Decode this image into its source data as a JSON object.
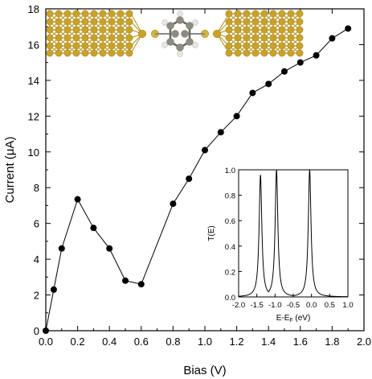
{
  "chart_data": [
    {
      "type": "line",
      "role": "main",
      "xlabel": "Bias (V)",
      "ylabel": "Current (μA)",
      "xlim": [
        0.0,
        2.0
      ],
      "ylim": [
        0,
        18
      ],
      "xticks": [
        0.0,
        0.2,
        0.4,
        0.6,
        0.8,
        1.0,
        1.2,
        1.4,
        1.6,
        1.8,
        2.0
      ],
      "xtick_labels": [
        "0.0",
        "0.2",
        "0.4",
        "0.6",
        "0.8",
        "1.0",
        "1.2",
        "1.4",
        "1.6",
        "1.8",
        "2.0"
      ],
      "yticks": [
        0,
        2,
        4,
        6,
        8,
        10,
        12,
        14,
        16,
        18
      ],
      "ytick_labels": [
        "0",
        "2",
        "4",
        "6",
        "8",
        "10",
        "12",
        "14",
        "16",
        "18"
      ],
      "grid": false,
      "marker": "filled-circle",
      "color": "#000000",
      "series": [
        {
          "x": [
            0.0,
            0.05,
            0.1,
            0.2,
            0.3,
            0.4,
            0.5,
            0.6,
            0.8,
            0.9,
            1.0,
            1.1,
            1.2,
            1.3,
            1.4,
            1.5,
            1.6,
            1.7,
            1.8,
            1.9
          ],
          "y": [
            0.0,
            2.3,
            4.6,
            7.35,
            5.75,
            4.6,
            2.8,
            2.6,
            7.1,
            8.5,
            10.1,
            11.1,
            12.0,
            13.3,
            13.8,
            14.5,
            15.0,
            15.4,
            16.35,
            16.9
          ]
        }
      ]
    },
    {
      "type": "line",
      "role": "inset",
      "xlabel": "E-E_F (eV)",
      "xlabel_main": "E-E",
      "xlabel_sub": "F",
      "xlabel_tail": " (eV)",
      "ylabel": "T(E)",
      "xlim": [
        -2.0,
        1.0
      ],
      "ylim": [
        0.0,
        1.0
      ],
      "xticks": [
        -2.0,
        -1.5,
        -1.0,
        -0.5,
        0.0,
        0.5,
        1.0
      ],
      "xtick_labels": [
        "-2.0",
        "-1.5",
        "-1.0",
        "-0.5",
        "0.0",
        "0.5",
        "1.0"
      ],
      "yticks": [
        0.0,
        0.2,
        0.4,
        0.6,
        0.8,
        1.0
      ],
      "ytick_labels": [
        "0.0",
        "0.2",
        "0.4",
        "0.6",
        "0.8",
        "1.0"
      ],
      "grid": false,
      "color": "#000000",
      "resonances": [
        {
          "center": -1.4,
          "height": 0.96
        },
        {
          "center": -0.96,
          "height": 1.0
        },
        {
          "center": -0.05,
          "height": 1.0
        }
      ]
    }
  ],
  "colors": {
    "axes": "#000000",
    "gold_atom": "#c9a227",
    "gold_bond": "#b58f1a",
    "carbon": "#8a8a8a",
    "hydrogen": "#e6e6e6",
    "sulfur": "#d4b43a"
  },
  "molecule_image": "gold-electrode-benzenedithiol-gold-junction"
}
